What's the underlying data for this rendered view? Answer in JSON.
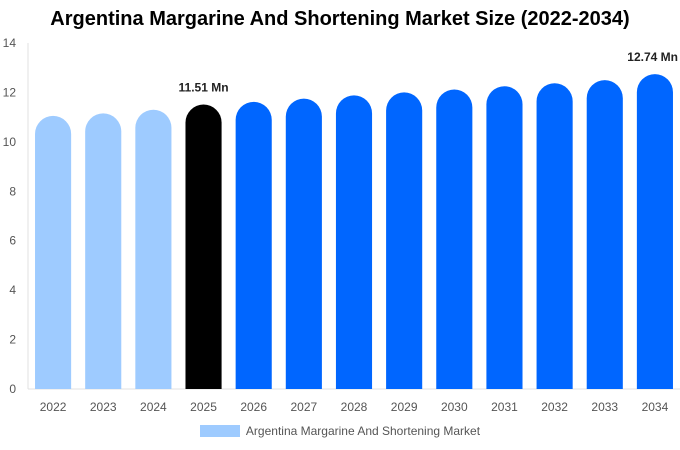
{
  "chart_data": {
    "type": "bar",
    "title": "Argentina Margarine And Shortening Market Size (2022-2034)",
    "categories": [
      "2022",
      "2023",
      "2024",
      "2025",
      "2026",
      "2027",
      "2028",
      "2029",
      "2030",
      "2031",
      "2032",
      "2033",
      "2034"
    ],
    "series": [
      {
        "name": "Argentina Margarine And Shortening Market",
        "values": [
          11.05,
          11.15,
          11.3,
          11.51,
          11.62,
          11.75,
          11.88,
          12.0,
          12.12,
          12.25,
          12.37,
          12.5,
          12.74
        ]
      }
    ],
    "data_labels": [
      {
        "category": "2025",
        "text": "11.51 Mn"
      },
      {
        "category": "2034",
        "text": "12.74 Mn"
      }
    ],
    "ylim": [
      0,
      14
    ],
    "yticks": [
      0,
      2,
      4,
      6,
      8,
      10,
      12,
      14
    ],
    "grid": false,
    "legend_position": "bottom",
    "colors": {
      "historical": "#9ecbff",
      "current": "#000000",
      "forecast": "#0066ff",
      "legend": "#9ecbff"
    },
    "bar_roles": [
      "historical",
      "historical",
      "historical",
      "current",
      "forecast",
      "forecast",
      "forecast",
      "forecast",
      "forecast",
      "forecast",
      "forecast",
      "forecast",
      "forecast"
    ]
  }
}
